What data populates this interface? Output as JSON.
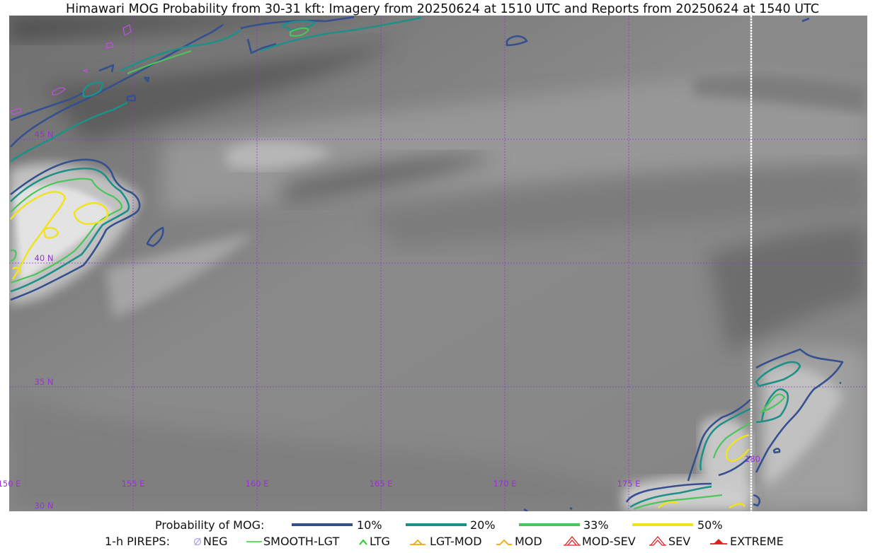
{
  "title": "Himawari MOG Probability from 30-31 kft: Imagery from 20250624 at 1510 UTC and Reports from 20250624 at 1540 UTC",
  "map": {
    "lon_labels": [
      "150 E",
      "155 E",
      "160 E",
      "165 E",
      "170 E",
      "175 E",
      "180"
    ],
    "lat_labels": [
      "45 N",
      "40 N",
      "35 N",
      "30 N"
    ],
    "gridline_color": "#9b30d9"
  },
  "legend": {
    "prob_title": "Probability of MOG:",
    "levels": [
      {
        "label": "10%",
        "color": "#34508e"
      },
      {
        "label": "20%",
        "color": "#1f8f88"
      },
      {
        "label": "33%",
        "color": "#4cc45a"
      },
      {
        "label": "50%",
        "color": "#f2e21e"
      }
    ],
    "pirep_title": "1-h PIREPS:",
    "pireps": [
      {
        "label": "NEG",
        "icon": "neg-icon",
        "color": "#a9a6f0"
      },
      {
        "label": "SMOOTH-LGT",
        "icon": "smooth-lgt-line-icon",
        "color": "#31d431"
      },
      {
        "label": "LTG",
        "icon": "ltg-caret-icon",
        "color": "#22cc22"
      },
      {
        "label": "LGT-MOD",
        "icon": "lgt-mod-icon",
        "color": "#f2a900"
      },
      {
        "label": "MOD",
        "icon": "mod-icon",
        "color": "#f2a900"
      },
      {
        "label": "MOD-SEV",
        "icon": "mod-sev-icon",
        "color": "#e02020"
      },
      {
        "label": "SEV",
        "icon": "sev-icon",
        "color": "#e02020"
      },
      {
        "label": "EXTREME",
        "icon": "extreme-icon",
        "color": "#e02020"
      }
    ]
  }
}
